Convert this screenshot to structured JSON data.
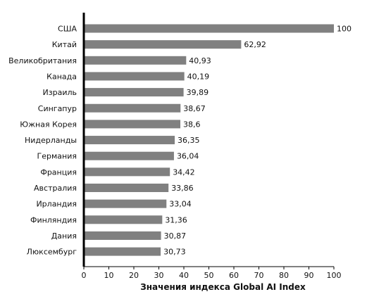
{
  "chart_data": {
    "type": "bar",
    "orientation": "horizontal",
    "categories": [
      "США",
      "Китай",
      "Великобритания",
      "Канада",
      "Израиль",
      "Сингапур",
      "Южная Корея",
      "Нидерланды",
      "Германия",
      "Франция",
      "Австралия",
      "Ирландия",
      "Финляндия",
      "Дания",
      "Люксембург"
    ],
    "values": [
      100,
      62.92,
      40.93,
      40.19,
      39.89,
      38.67,
      38.6,
      36.35,
      36.04,
      34.42,
      33.86,
      33.04,
      31.36,
      30.87,
      30.73
    ],
    "value_labels": [
      "100",
      "62,92",
      "40,93",
      "40,19",
      "39,89",
      "38,67",
      "38,6",
      "36,35",
      "36,04",
      "34,42",
      "33,86",
      "33,04",
      "31,36",
      "30,87",
      "30,73"
    ],
    "title": "",
    "xlabel": "Значения индекса Global AI Index",
    "ylabel": "",
    "xlim": [
      0,
      100
    ],
    "xticks": [
      "0",
      "10",
      "20",
      "30",
      "40",
      "50",
      "60",
      "70",
      "80",
      "90",
      "100"
    ],
    "grid": false,
    "legend": "none",
    "colors": {
      "bar": "#808080",
      "axis": "#000000",
      "text": "#111111"
    }
  }
}
